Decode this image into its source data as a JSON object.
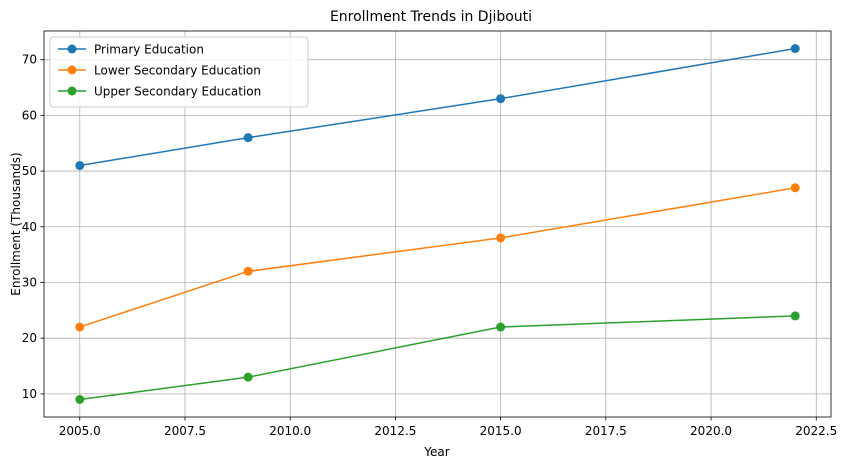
{
  "chart_data": {
    "type": "line",
    "title": "Enrollment Trends in Djibouti",
    "xlabel": "Year",
    "ylabel": "Enrollment (Thousands)",
    "x": [
      2005,
      2009,
      2015,
      2022
    ],
    "xlim": [
      2004.15,
      2022.85
    ],
    "ylim": [
      5.85,
      75.15
    ],
    "xticks": [
      2005.0,
      2007.5,
      2010.0,
      2012.5,
      2015.0,
      2017.5,
      2020.0,
      2022.5
    ],
    "xtick_labels": [
      "2005.0",
      "2007.5",
      "2010.0",
      "2012.5",
      "2015.0",
      "2017.5",
      "2020.0",
      "2022.5"
    ],
    "yticks": [
      10,
      20,
      30,
      40,
      50,
      60,
      70
    ],
    "ytick_labels": [
      "10",
      "20",
      "30",
      "40",
      "50",
      "60",
      "70"
    ],
    "grid": true,
    "legend_position": "top-left",
    "series": [
      {
        "name": "Primary Education",
        "color": "#1f77b4",
        "values": [
          51,
          56,
          63,
          72
        ]
      },
      {
        "name": "Lower Secondary Education",
        "color": "#ff7f0e",
        "values": [
          22,
          32,
          38,
          47
        ]
      },
      {
        "name": "Upper Secondary Education",
        "color": "#2ca02c",
        "values": [
          9,
          13,
          22,
          24
        ]
      }
    ]
  }
}
